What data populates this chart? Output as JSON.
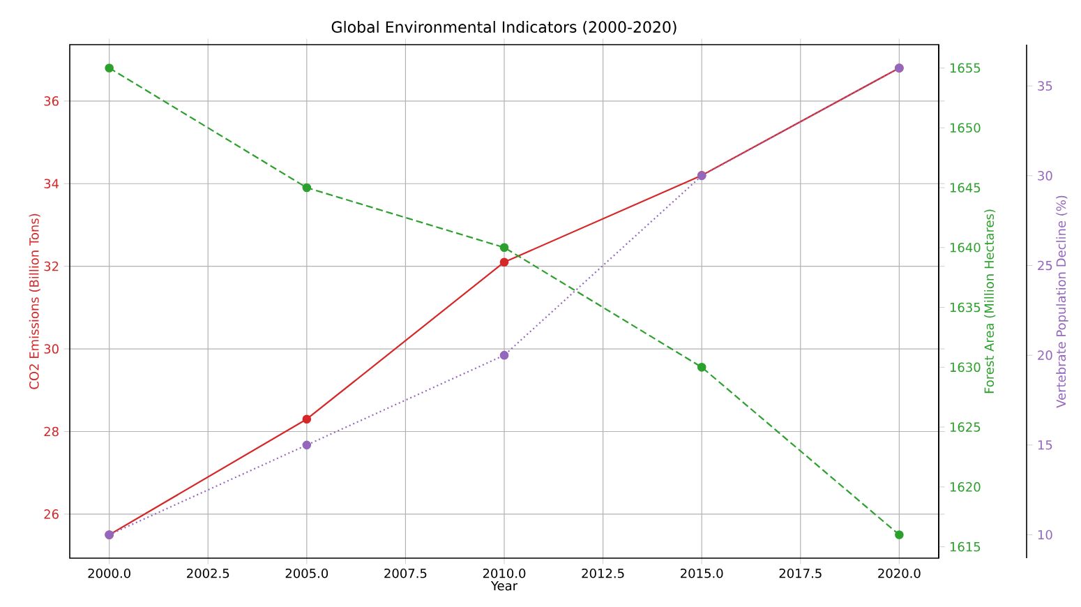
{
  "chart_data": {
    "type": "line",
    "title": "Global Environmental Indicators (2000-2020)",
    "xlabel": "Year",
    "ylabel": "CO2 Emissions (Billion Tons)",
    "y2label": "Forest Area (Million Hectares)",
    "y3label": "Vertebrate Population Decline (%)",
    "x": [
      2000,
      2005,
      2010,
      2015,
      2020
    ],
    "series": [
      {
        "color": "#d62728",
        "values": [
          25.5,
          28.3,
          32.1,
          34.2,
          36.8
        ],
        "line_style": "solid"
      },
      {
        "color": "#2ca02c",
        "values": [
          1655,
          1645,
          1640,
          1630,
          1616
        ],
        "axis": "y2",
        "line_style": "dashed"
      },
      {
        "color": "#9467bd",
        "values": [
          10,
          15,
          20,
          30,
          36
        ],
        "axis": "y3",
        "line_style": "dotted"
      }
    ],
    "xlim": [
      1999,
      2021
    ],
    "xticks": [
      {
        "value": 2000,
        "label": "2000.0"
      },
      {
        "value": 2002.5,
        "label": "2002.5"
      },
      {
        "value": 2005,
        "label": "2005.0"
      },
      {
        "value": 2007.5,
        "label": "2007.5"
      },
      {
        "value": 2010,
        "label": "2010.0"
      },
      {
        "value": 2012.5,
        "label": "2012.5"
      },
      {
        "value": 2015,
        "label": "2015.0"
      },
      {
        "value": 2017.5,
        "label": "2017.5"
      },
      {
        "value": 2020,
        "label": "2020.0"
      }
    ],
    "ylim": [
      24.935,
      37.365
    ],
    "yticks": [
      26,
      28,
      30,
      32,
      34,
      36
    ],
    "y2lim": [
      1614.05,
      1656.95
    ],
    "y2ticks": [
      1615,
      1620,
      1625,
      1630,
      1635,
      1640,
      1645,
      1650,
      1655
    ],
    "y3lim": [
      8.7,
      37.3
    ],
    "y3ticks": [
      10,
      15,
      20,
      25,
      30,
      35
    ],
    "grid": true,
    "marker": "circle"
  }
}
